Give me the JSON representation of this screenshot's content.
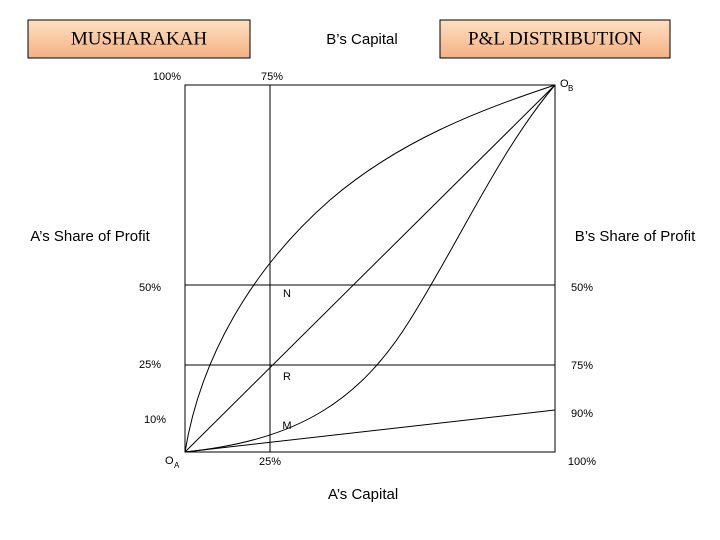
{
  "header": {
    "left_title": "MUSHARAKAH",
    "center_title": "B’s Capital",
    "right_title": "P&L DISTRIBUTION"
  },
  "top_axis": {
    "left": "100%",
    "mid": "75%"
  },
  "origin_b": {
    "letter": "O",
    "subscript": "B"
  },
  "origin_a": {
    "letter": "O",
    "subscript": "A"
  },
  "side_titles": {
    "left": "A’s Share of Profit",
    "right": "B’s Share of Profit"
  },
  "left_axis": [
    "50%",
    "25%",
    "10%"
  ],
  "right_axis": [
    "50%",
    "75%",
    "90%"
  ],
  "points": [
    "N",
    "R",
    "M"
  ],
  "bottom_axis": {
    "mid": "25%",
    "right": "100%"
  },
  "x_title": "A’s Capital"
}
